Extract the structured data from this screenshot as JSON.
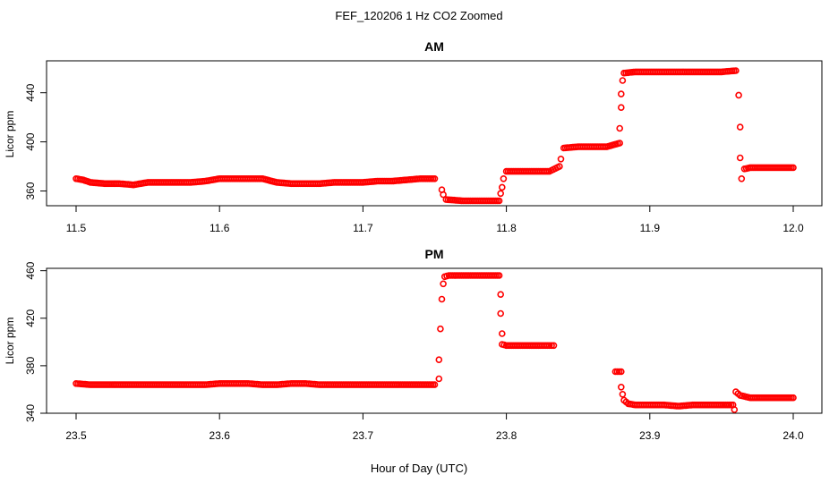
{
  "figure_title": "FEF_120206  1 Hz CO2 Zoomed",
  "xlabel": "Hour of Day (UTC)",
  "colors": {
    "points": "#ff0000",
    "axes": "#000000"
  },
  "chart_data": [
    {
      "type": "scatter",
      "title": "AM",
      "ylabel": "Licor ppm",
      "xlim": [
        11.5,
        12.0
      ],
      "ylim": [
        348,
        466
      ],
      "xticks": [
        "11.5",
        "11.6",
        "11.7",
        "11.8",
        "11.9",
        "12.0"
      ],
      "yticks": [
        "360",
        "400",
        "440"
      ],
      "points": [
        [
          11.5,
          370
        ],
        [
          11.505,
          369
        ],
        [
          11.51,
          367
        ],
        [
          11.52,
          366
        ],
        [
          11.53,
          366
        ],
        [
          11.54,
          365
        ],
        [
          11.55,
          367
        ],
        [
          11.56,
          367
        ],
        [
          11.57,
          367
        ],
        [
          11.58,
          367
        ],
        [
          11.59,
          368
        ],
        [
          11.595,
          369
        ],
        [
          11.6,
          370
        ],
        [
          11.61,
          370
        ],
        [
          11.62,
          370
        ],
        [
          11.63,
          370
        ],
        [
          11.64,
          367
        ],
        [
          11.65,
          366
        ],
        [
          11.66,
          366
        ],
        [
          11.67,
          366
        ],
        [
          11.68,
          367
        ],
        [
          11.69,
          367
        ],
        [
          11.7,
          367
        ],
        [
          11.71,
          368
        ],
        [
          11.72,
          368
        ],
        [
          11.73,
          369
        ],
        [
          11.74,
          370
        ],
        [
          11.75,
          370
        ],
        [
          11.755,
          361
        ],
        [
          11.756,
          357
        ],
        [
          11.758,
          353
        ],
        [
          11.77,
          352
        ],
        [
          11.78,
          352
        ],
        [
          11.79,
          352
        ],
        [
          11.795,
          352
        ],
        [
          11.796,
          358
        ],
        [
          11.797,
          363
        ],
        [
          11.798,
          370
        ],
        [
          11.8,
          376
        ],
        [
          11.81,
          376
        ],
        [
          11.82,
          376
        ],
        [
          11.83,
          376
        ],
        [
          11.837,
          380
        ],
        [
          11.838,
          386
        ],
        [
          11.84,
          395
        ],
        [
          11.85,
          396
        ],
        [
          11.86,
          396
        ],
        [
          11.87,
          396
        ],
        [
          11.879,
          399
        ],
        [
          11.879,
          411
        ],
        [
          11.88,
          428
        ],
        [
          11.88,
          439
        ],
        [
          11.881,
          450
        ],
        [
          11.882,
          456
        ],
        [
          11.89,
          457
        ],
        [
          11.9,
          457
        ],
        [
          11.91,
          457
        ],
        [
          11.92,
          457
        ],
        [
          11.93,
          457
        ],
        [
          11.94,
          457
        ],
        [
          11.95,
          457
        ],
        [
          11.96,
          458
        ],
        [
          11.962,
          438
        ],
        [
          11.963,
          412
        ],
        [
          11.963,
          387
        ],
        [
          11.964,
          370
        ],
        [
          11.966,
          378
        ],
        [
          11.97,
          379
        ],
        [
          11.98,
          379
        ],
        [
          11.99,
          379
        ],
        [
          12.0,
          379
        ]
      ]
    },
    {
      "type": "scatter",
      "title": "PM",
      "ylabel": "Licor ppm",
      "xlim": [
        23.5,
        24.0
      ],
      "ylim": [
        340,
        462
      ],
      "xticks": [
        "23.5",
        "23.6",
        "23.7",
        "23.8",
        "23.9",
        "24.0"
      ],
      "yticks": [
        "340",
        "380",
        "420",
        "460"
      ],
      "points": [
        [
          23.5,
          365
        ],
        [
          23.51,
          364
        ],
        [
          23.52,
          364
        ],
        [
          23.53,
          364
        ],
        [
          23.54,
          364
        ],
        [
          23.55,
          364
        ],
        [
          23.56,
          364
        ],
        [
          23.57,
          364
        ],
        [
          23.58,
          364
        ],
        [
          23.59,
          364
        ],
        [
          23.6,
          365
        ],
        [
          23.61,
          365
        ],
        [
          23.62,
          365
        ],
        [
          23.63,
          364
        ],
        [
          23.64,
          364
        ],
        [
          23.65,
          365
        ],
        [
          23.66,
          365
        ],
        [
          23.67,
          364
        ],
        [
          23.68,
          364
        ],
        [
          23.69,
          364
        ],
        [
          23.7,
          364
        ],
        [
          23.71,
          364
        ],
        [
          23.72,
          364
        ],
        [
          23.73,
          364
        ],
        [
          23.74,
          364
        ],
        [
          23.75,
          364
        ],
        [
          23.753,
          369
        ],
        [
          23.753,
          385
        ],
        [
          23.754,
          411
        ],
        [
          23.755,
          436
        ],
        [
          23.756,
          449
        ],
        [
          23.757,
          455
        ],
        [
          23.76,
          456
        ],
        [
          23.77,
          456
        ],
        [
          23.78,
          456
        ],
        [
          23.79,
          456
        ],
        [
          23.795,
          456
        ],
        [
          23.796,
          440
        ],
        [
          23.796,
          424
        ],
        [
          23.797,
          407
        ],
        [
          23.797,
          398
        ],
        [
          23.8,
          397
        ],
        [
          23.81,
          397
        ],
        [
          23.82,
          397
        ],
        [
          23.83,
          397
        ],
        [
          23.833,
          397
        ],
        [
          23.876,
          375
        ],
        [
          23.88,
          375
        ],
        [
          23.88,
          362
        ],
        [
          23.881,
          356
        ],
        [
          23.882,
          351
        ],
        [
          23.885,
          348
        ],
        [
          23.89,
          347
        ],
        [
          23.9,
          347
        ],
        [
          23.91,
          347
        ],
        [
          23.92,
          346
        ],
        [
          23.93,
          347
        ],
        [
          23.94,
          347
        ],
        [
          23.95,
          347
        ],
        [
          23.958,
          347
        ],
        [
          23.959,
          343
        ],
        [
          23.96,
          358
        ],
        [
          23.963,
          355
        ],
        [
          23.97,
          353
        ],
        [
          23.98,
          353
        ],
        [
          23.99,
          353
        ],
        [
          24.0,
          353
        ]
      ]
    }
  ]
}
